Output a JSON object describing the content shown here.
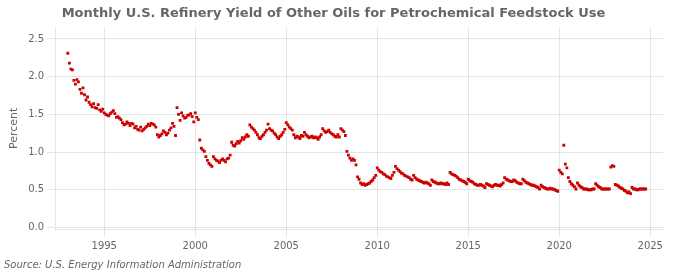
{
  "chart_data": {
    "type": "scatter",
    "title": "Monthly U.S. Refinery Yield of Other Oils for Petrochemical Feedstock Use",
    "ylabel": "Percent",
    "source": "Source: U.S. Energy Information Administration",
    "color": "#CC0000",
    "marker": "square",
    "grid": true,
    "xlim": [
      1992.3,
      2025.7
    ],
    "ylim": [
      -0.02,
      2.65
    ],
    "xticks": [
      1995,
      2000,
      2005,
      2010,
      2015,
      2020,
      2025
    ],
    "yticks": [
      {
        "value": 0.0,
        "label": "0.0"
      },
      0.5,
      {
        "value": 1.0,
        "label": "1.0"
      },
      1.5,
      {
        "value": 2.0,
        "label": "2.0"
      },
      2.5
    ],
    "x": [
      1993.0,
      1993.083,
      1993.167,
      1993.25,
      1993.333,
      1993.417,
      1993.5,
      1993.583,
      1993.667,
      1993.75,
      1993.833,
      1993.917,
      1994.0,
      1994.083,
      1994.167,
      1994.25,
      1994.333,
      1994.417,
      1994.5,
      1994.583,
      1994.667,
      1994.75,
      1994.833,
      1994.917,
      1995.0,
      1995.083,
      1995.167,
      1995.25,
      1995.333,
      1995.417,
      1995.5,
      1995.583,
      1995.667,
      1995.75,
      1995.833,
      1995.917,
      1996.0,
      1996.083,
      1996.167,
      1996.25,
      1996.333,
      1996.417,
      1996.5,
      1996.583,
      1996.667,
      1996.75,
      1996.833,
      1996.917,
      1997.0,
      1997.083,
      1997.167,
      1997.25,
      1997.333,
      1997.417,
      1997.5,
      1997.583,
      1997.667,
      1997.75,
      1997.833,
      1997.917,
      1998.0,
      1998.083,
      1998.167,
      1998.25,
      1998.333,
      1998.417,
      1998.5,
      1998.583,
      1998.667,
      1998.75,
      1998.833,
      1998.917,
      1999.0,
      1999.083,
      1999.167,
      1999.25,
      1999.333,
      1999.417,
      1999.5,
      1999.583,
      1999.667,
      1999.75,
      1999.833,
      1999.917,
      2000.0,
      2000.083,
      2000.167,
      2000.25,
      2000.333,
      2000.417,
      2000.5,
      2000.583,
      2000.667,
      2000.75,
      2000.833,
      2000.917,
      2001.0,
      2001.083,
      2001.167,
      2001.25,
      2001.333,
      2001.417,
      2001.5,
      2001.583,
      2001.667,
      2001.75,
      2001.833,
      2001.917,
      2002.0,
      2002.083,
      2002.167,
      2002.25,
      2002.333,
      2002.417,
      2002.5,
      2002.583,
      2002.667,
      2002.75,
      2002.833,
      2002.917,
      2003.0,
      2003.083,
      2003.167,
      2003.25,
      2003.333,
      2003.417,
      2003.5,
      2003.583,
      2003.667,
      2003.75,
      2003.833,
      2003.917,
      2004.0,
      2004.083,
      2004.167,
      2004.25,
      2004.333,
      2004.417,
      2004.5,
      2004.583,
      2004.667,
      2004.75,
      2004.833,
      2004.917,
      2005.0,
      2005.083,
      2005.167,
      2005.25,
      2005.333,
      2005.417,
      2005.5,
      2005.583,
      2005.667,
      2005.75,
      2005.833,
      2005.917,
      2006.0,
      2006.083,
      2006.167,
      2006.25,
      2006.333,
      2006.417,
      2006.5,
      2006.583,
      2006.667,
      2006.75,
      2006.833,
      2006.917,
      2007.0,
      2007.083,
      2007.167,
      2007.25,
      2007.333,
      2007.417,
      2007.5,
      2007.583,
      2007.667,
      2007.75,
      2007.833,
      2007.917,
      2008.0,
      2008.083,
      2008.167,
      2008.25,
      2008.333,
      2008.417,
      2008.5,
      2008.583,
      2008.667,
      2008.75,
      2008.833,
      2008.917,
      2009.0,
      2009.083,
      2009.167,
      2009.25,
      2009.333,
      2009.417,
      2009.5,
      2009.583,
      2009.667,
      2009.75,
      2009.833,
      2009.917,
      2010.0,
      2010.083,
      2010.167,
      2010.25,
      2010.333,
      2010.417,
      2010.5,
      2010.583,
      2010.667,
      2010.75,
      2010.833,
      2010.917,
      2011.0,
      2011.083,
      2011.167,
      2011.25,
      2011.333,
      2011.417,
      2011.5,
      2011.583,
      2011.667,
      2011.75,
      2011.833,
      2011.917,
      2012.0,
      2012.083,
      2012.167,
      2012.25,
      2012.333,
      2012.417,
      2012.5,
      2012.583,
      2012.667,
      2012.75,
      2012.833,
      2012.917,
      2013.0,
      2013.083,
      2013.167,
      2013.25,
      2013.333,
      2013.417,
      2013.5,
      2013.583,
      2013.667,
      2013.75,
      2013.833,
      2013.917,
      2014.0,
      2014.083,
      2014.167,
      2014.25,
      2014.333,
      2014.417,
      2014.5,
      2014.583,
      2014.667,
      2014.75,
      2014.833,
      2014.917,
      2015.0,
      2015.083,
      2015.167,
      2015.25,
      2015.333,
      2015.417,
      2015.5,
      2015.583,
      2015.667,
      2015.75,
      2015.833,
      2015.917,
      2016.0,
      2016.083,
      2016.167,
      2016.25,
      2016.333,
      2016.417,
      2016.5,
      2016.583,
      2016.667,
      2016.75,
      2016.833,
      2016.917,
      2017.0,
      2017.083,
      2017.167,
      2017.25,
      2017.333,
      2017.417,
      2017.5,
      2017.583,
      2017.667,
      2017.75,
      2017.833,
      2017.917,
      2018.0,
      2018.083,
      2018.167,
      2018.25,
      2018.333,
      2018.417,
      2018.5,
      2018.583,
      2018.667,
      2018.75,
      2018.833,
      2018.917,
      2019.0,
      2019.083,
      2019.167,
      2019.25,
      2019.333,
      2019.417,
      2019.5,
      2019.583,
      2019.667,
      2019.75,
      2019.833,
      2019.917,
      2020.0,
      2020.083,
      2020.167,
      2020.25,
      2020.333,
      2020.417,
      2020.5,
      2020.583,
      2020.667,
      2020.75,
      2020.833,
      2020.917,
      2021.0,
      2021.083,
      2021.167,
      2021.25,
      2021.333,
      2021.417,
      2021.5,
      2021.583,
      2021.667,
      2021.75,
      2021.833,
      2021.917,
      2022.0,
      2022.083,
      2022.167,
      2022.25,
      2022.333,
      2022.417,
      2022.5,
      2022.583,
      2022.667,
      2022.75,
      2022.833,
      2022.917,
      2023.0,
      2023.083,
      2023.167,
      2023.25,
      2023.333,
      2023.417,
      2023.5,
      2023.583,
      2023.667,
      2023.75,
      2023.833,
      2023.917,
      2024.0,
      2024.083,
      2024.167,
      2024.25,
      2024.333,
      2024.417,
      2024.5,
      2024.583,
      2024.667,
      2024.75
    ],
    "values": [
      2.31,
      2.18,
      2.1,
      2.09,
      1.95,
      1.9,
      1.96,
      1.93,
      1.83,
      1.78,
      1.85,
      1.76,
      1.69,
      1.73,
      1.66,
      1.63,
      1.6,
      1.64,
      1.59,
      1.58,
      1.63,
      1.56,
      1.54,
      1.57,
      1.52,
      1.5,
      1.49,
      1.48,
      1.51,
      1.53,
      1.55,
      1.51,
      1.46,
      1.47,
      1.45,
      1.43,
      1.39,
      1.36,
      1.37,
      1.4,
      1.38,
      1.35,
      1.38,
      1.37,
      1.32,
      1.34,
      1.3,
      1.29,
      1.33,
      1.28,
      1.3,
      1.32,
      1.34,
      1.37,
      1.35,
      1.38,
      1.37,
      1.36,
      1.33,
      1.23,
      1.2,
      1.22,
      1.24,
      1.28,
      1.26,
      1.23,
      1.25,
      1.29,
      1.32,
      1.38,
      1.34,
      1.22,
      1.59,
      1.5,
      1.42,
      1.52,
      1.48,
      1.45,
      1.46,
      1.49,
      1.49,
      1.51,
      1.47,
      1.4,
      1.52,
      1.46,
      1.43,
      1.16,
      1.05,
      1.03,
      1.01,
      0.94,
      0.89,
      0.85,
      0.83,
      0.81,
      0.94,
      0.91,
      0.89,
      0.88,
      0.86,
      0.89,
      0.91,
      0.89,
      0.87,
      0.91,
      0.92,
      0.96,
      1.13,
      1.09,
      1.08,
      1.11,
      1.14,
      1.12,
      1.15,
      1.19,
      1.17,
      1.2,
      1.23,
      1.21,
      1.36,
      1.33,
      1.31,
      1.29,
      1.26,
      1.23,
      1.19,
      1.18,
      1.21,
      1.23,
      1.26,
      1.29,
      1.37,
      1.31,
      1.29,
      1.28,
      1.25,
      1.23,
      1.2,
      1.18,
      1.21,
      1.23,
      1.26,
      1.3,
      1.39,
      1.36,
      1.33,
      1.31,
      1.29,
      1.23,
      1.19,
      1.21,
      1.2,
      1.18,
      1.22,
      1.21,
      1.26,
      1.23,
      1.21,
      1.19,
      1.2,
      1.21,
      1.19,
      1.2,
      1.19,
      1.17,
      1.2,
      1.23,
      1.31,
      1.28,
      1.26,
      1.27,
      1.29,
      1.26,
      1.24,
      1.23,
      1.21,
      1.2,
      1.23,
      1.2,
      1.31,
      1.29,
      1.27,
      1.22,
      1.01,
      0.96,
      0.92,
      0.89,
      0.91,
      0.89,
      0.83,
      0.67,
      0.64,
      0.59,
      0.57,
      0.58,
      0.56,
      0.57,
      0.58,
      0.59,
      0.61,
      0.63,
      0.66,
      0.69,
      0.79,
      0.76,
      0.74,
      0.73,
      0.71,
      0.7,
      0.68,
      0.67,
      0.66,
      0.65,
      0.69,
      0.73,
      0.81,
      0.78,
      0.76,
      0.74,
      0.72,
      0.71,
      0.69,
      0.68,
      0.67,
      0.66,
      0.64,
      0.63,
      0.69,
      0.66,
      0.64,
      0.63,
      0.62,
      0.61,
      0.6,
      0.59,
      0.6,
      0.59,
      0.58,
      0.56,
      0.63,
      0.61,
      0.6,
      0.59,
      0.58,
      0.58,
      0.59,
      0.58,
      0.58,
      0.57,
      0.59,
      0.57,
      0.73,
      0.71,
      0.7,
      0.69,
      0.68,
      0.66,
      0.64,
      0.63,
      0.62,
      0.61,
      0.6,
      0.58,
      0.64,
      0.62,
      0.61,
      0.6,
      0.58,
      0.57,
      0.56,
      0.56,
      0.57,
      0.56,
      0.55,
      0.53,
      0.58,
      0.57,
      0.56,
      0.55,
      0.54,
      0.56,
      0.57,
      0.56,
      0.56,
      0.55,
      0.57,
      0.59,
      0.66,
      0.64,
      0.63,
      0.62,
      0.61,
      0.61,
      0.63,
      0.62,
      0.6,
      0.59,
      0.58,
      0.58,
      0.64,
      0.62,
      0.6,
      0.59,
      0.58,
      0.57,
      0.56,
      0.56,
      0.55,
      0.54,
      0.53,
      0.51,
      0.56,
      0.54,
      0.53,
      0.52,
      0.51,
      0.51,
      0.52,
      0.51,
      0.51,
      0.5,
      0.49,
      0.48,
      0.76,
      0.73,
      0.71,
      1.09,
      0.84,
      0.79,
      0.66,
      0.61,
      0.58,
      0.56,
      0.54,
      0.51,
      0.59,
      0.56,
      0.54,
      0.53,
      0.51,
      0.51,
      0.51,
      0.5,
      0.5,
      0.5,
      0.51,
      0.51,
      0.58,
      0.56,
      0.54,
      0.53,
      0.51,
      0.51,
      0.51,
      0.51,
      0.51,
      0.51,
      0.8,
      0.82,
      0.81,
      0.57,
      0.56,
      0.55,
      0.53,
      0.52,
      0.51,
      0.49,
      0.48,
      0.46,
      0.47,
      0.45,
      0.53,
      0.51,
      0.51,
      0.5,
      0.5,
      0.51,
      0.51,
      0.51,
      0.51,
      0.51
    ]
  }
}
